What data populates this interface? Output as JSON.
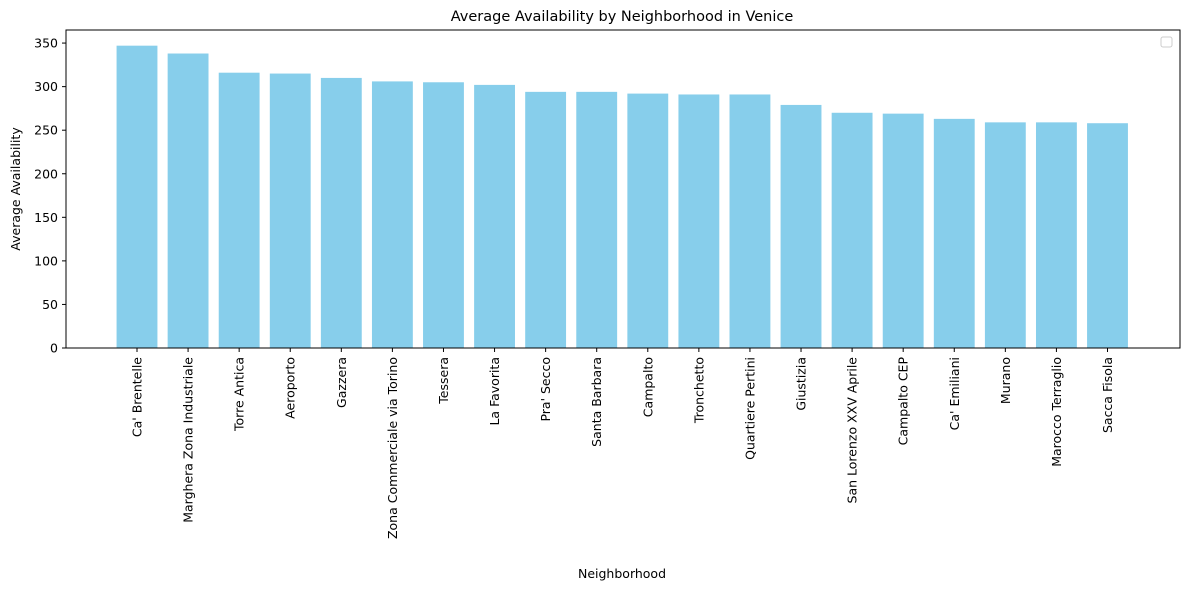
{
  "chart_data": {
    "type": "bar",
    "title": "Average Availability by Neighborhood in Venice",
    "xlabel": "Neighborhood",
    "ylabel": "Average Availability",
    "categories": [
      "Ca' Brentelle",
      "Marghera Zona Industriale",
      "Torre Antica",
      "Aeroporto",
      "Gazzera",
      "Zona Commerciale via Torino",
      "Tessera",
      "La Favorita",
      "Pra' Secco",
      "Santa Barbara",
      "Campalto",
      "Tronchetto",
      "Quartiere Pertini",
      "Giustizia",
      "San Lorenzo XXV Aprile",
      "Campalto CEP",
      "Ca' Emiliani",
      "Murano",
      "Marocco Terraglio",
      "Sacca Fisola"
    ],
    "values": [
      347,
      338,
      316,
      315,
      310,
      306,
      305,
      302,
      294,
      294,
      292,
      291,
      291,
      279,
      270,
      269,
      263,
      259,
      259,
      258
    ],
    "ylim": [
      0,
      365
    ],
    "yticks": [
      0,
      50,
      100,
      150,
      200,
      250,
      300,
      350
    ],
    "bar_color": "#87ceeb",
    "grid": false,
    "legend": "top-right, empty"
  }
}
